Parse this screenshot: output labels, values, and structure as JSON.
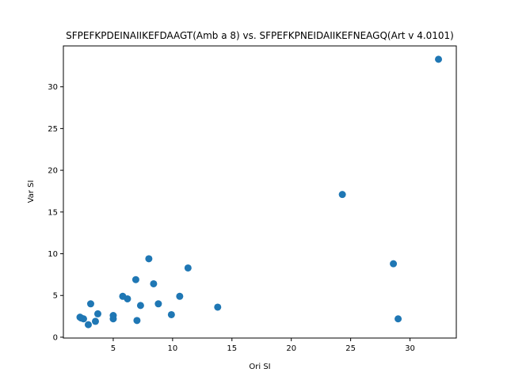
{
  "chart_data": {
    "type": "scatter",
    "title": "SFPEFKPDEINAIIKEFDAAGT(Amb a 8) vs. SFPEFKPNEIDAIIKEFNEAGQ(Art v 4.0101)",
    "xlabel": "Ori SI",
    "ylabel": "Var SI",
    "xlim": [
      0.8,
      33.9
    ],
    "ylim": [
      -0.1,
      34.9
    ],
    "xticks": [
      5,
      10,
      15,
      20,
      25,
      30
    ],
    "yticks": [
      0,
      5,
      10,
      15,
      20,
      25,
      30
    ],
    "grid": false,
    "marker_color": "#1f77b4",
    "points": [
      {
        "x": 32.4,
        "y": 33.3
      },
      {
        "x": 24.3,
        "y": 17.1
      },
      {
        "x": 28.6,
        "y": 8.8
      },
      {
        "x": 29.0,
        "y": 2.2
      },
      {
        "x": 13.8,
        "y": 3.6
      },
      {
        "x": 11.3,
        "y": 8.3
      },
      {
        "x": 10.6,
        "y": 4.9
      },
      {
        "x": 9.9,
        "y": 2.7
      },
      {
        "x": 8.8,
        "y": 4.0
      },
      {
        "x": 8.4,
        "y": 6.4
      },
      {
        "x": 8.0,
        "y": 9.4
      },
      {
        "x": 7.3,
        "y": 3.8
      },
      {
        "x": 7.0,
        "y": 2.0
      },
      {
        "x": 6.9,
        "y": 6.9
      },
      {
        "x": 6.2,
        "y": 4.6
      },
      {
        "x": 5.8,
        "y": 4.9
      },
      {
        "x": 5.0,
        "y": 2.6
      },
      {
        "x": 5.0,
        "y": 2.2
      },
      {
        "x": 3.7,
        "y": 2.8
      },
      {
        "x": 3.5,
        "y": 1.9
      },
      {
        "x": 3.1,
        "y": 4.0
      },
      {
        "x": 2.9,
        "y": 1.5
      },
      {
        "x": 2.5,
        "y": 2.2
      },
      {
        "x": 2.3,
        "y": 2.3
      },
      {
        "x": 2.2,
        "y": 2.4
      }
    ]
  }
}
